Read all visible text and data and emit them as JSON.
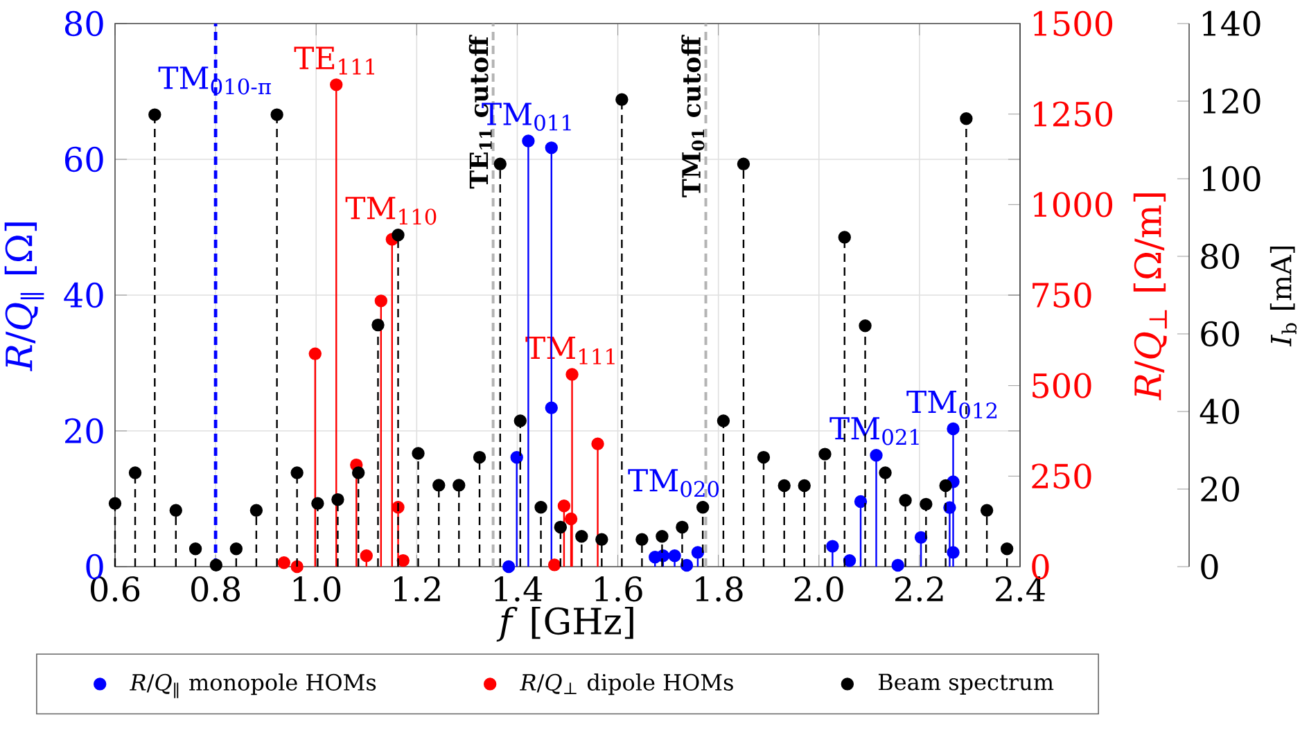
{
  "chart_data": {
    "type": "lollipop",
    "xlabel": "*f* [GHz]",
    "ylabel": "*R*/*Q*$_{∥}$ [Ω]",
    "y2label": "*R*/*Q*$_{⊥}$ [Ω/m]",
    "y3label": "*I*$_{b}$ [mA]",
    "xlim": [
      0.6,
      2.4
    ],
    "xticks": [
      0.6,
      0.8,
      {
        "value": 1.0,
        "label": "1.0"
      },
      1.2,
      1.4,
      1.6,
      1.8,
      {
        "value": 2.0,
        "label": "2.0"
      },
      2.2,
      2.4
    ],
    "ylim": [
      0,
      80
    ],
    "yticks": [
      0,
      20,
      40,
      60,
      80
    ],
    "y2lim": [
      0,
      1500
    ],
    "y2ticks": [
      0,
      250,
      500,
      750,
      1000,
      1250,
      1500
    ],
    "y3lim": [
      0,
      140
    ],
    "y3ticks": [
      0,
      20,
      40,
      60,
      80,
      100,
      120,
      140
    ],
    "grid": true,
    "legend": "bottom",
    "marker": "circle",
    "series": [
      {
        "name": "*R*/*Q*$_{∥}$ monopole HOMs",
        "color": "#0000ff",
        "line_style": "solid",
        "x": [
          1.383,
          1.399,
          1.422,
          1.468,
          1.468,
          1.674,
          1.69,
          1.713,
          1.737,
          1.759,
          2.027,
          2.061,
          2.083,
          2.114,
          2.157,
          2.203,
          2.26,
          2.267,
          2.267,
          2.267
        ],
        "values": [
          0,
          16.1,
          62.7,
          61.7,
          23.4,
          1.4,
          1.6,
          1.6,
          0.2,
          2.1,
          3.0,
          0.9,
          9.6,
          16.4,
          0.2,
          4.3,
          8.7,
          20.3,
          12.5,
          2.1
        ]
      },
      {
        "name": "*R*/*Q*$_{⊥}$ dipole HOMs",
        "color": "#ff0000",
        "axis": "y2",
        "line_style": "solid",
        "x": [
          0.936,
          0.962,
          0.998,
          1.04,
          1.08,
          1.1,
          1.129,
          1.151,
          1.163,
          1.173,
          1.474,
          1.493,
          1.507,
          1.509,
          1.56
        ],
        "values": [
          11,
          0,
          588,
          1331,
          281,
          30,
          734,
          904,
          164,
          17,
          5,
          168,
          132,
          531,
          339
        ]
      },
      {
        "name": "Beam spectrum",
        "color": "#000000",
        "axis": "y3",
        "line_style": "dashed",
        "x": [
          0.6,
          0.64,
          0.679,
          0.721,
          0.76,
          0.801,
          0.841,
          0.881,
          0.922,
          0.962,
          1.003,
          1.043,
          1.084,
          1.123,
          1.163,
          1.203,
          1.244,
          1.284,
          1.325,
          1.366,
          1.406,
          1.447,
          1.486,
          1.528,
          1.568,
          1.608,
          1.648,
          1.688,
          1.728,
          1.769,
          1.81,
          1.85,
          1.89,
          1.931,
          1.971,
          2.012,
          2.051,
          2.092,
          2.132,
          2.172,
          2.213,
          2.252,
          2.293,
          2.334,
          2.374
        ],
        "values": [
          16.3,
          24.2,
          116.5,
          14.5,
          4.6,
          0.4,
          4.6,
          14.5,
          116.5,
          24.2,
          16.3,
          17.3,
          24.2,
          62.3,
          85.5,
          29.2,
          21.0,
          21.0,
          28.2,
          103.8,
          37.6,
          15.3,
          10.2,
          7.8,
          7.0,
          120.4,
          7.0,
          7.8,
          10.2,
          15.3,
          37.6,
          103.8,
          28.2,
          20.9,
          20.9,
          29.0,
          84.9,
          62.1,
          24.2,
          17.1,
          16.1,
          20.9,
          115.5,
          14.5,
          4.6
        ]
      }
    ],
    "ref_lines": [
      {
        "axis": "x",
        "value": 0.8,
        "label": "TM$_{010-π}$",
        "color": "#0000ff",
        "line_style": "dashed"
      },
      {
        "axis": "x",
        "value": 1.352,
        "label": "TE$_{11}$ cutoff",
        "color": "#b4b4b4",
        "line_style": "dashed"
      },
      {
        "axis": "x",
        "value": 1.775,
        "label": "TM$_{01}$ cutoff",
        "color": "#b4b4b4",
        "line_style": "dashed"
      }
    ],
    "annotations": [
      {
        "text": "TE$_{111}$",
        "x": 1.04,
        "y": 71.0
      },
      {
        "text": "TM$_{110}$",
        "x": 1.151,
        "y": 48.2
      },
      {
        "text": "TM$_{011}$",
        "x": 1.422,
        "y": 62.7
      },
      {
        "text": "TM$_{111}$",
        "x": 1.509,
        "y": 28.3
      },
      {
        "text": "TM$_{020}$",
        "x": 1.713,
        "y": 1.6
      },
      {
        "text": "TM$_{021}$",
        "x": 2.114,
        "y": 16.4
      },
      {
        "text": "TM$_{012}$",
        "x": 2.267,
        "y": 20.3
      }
    ]
  }
}
